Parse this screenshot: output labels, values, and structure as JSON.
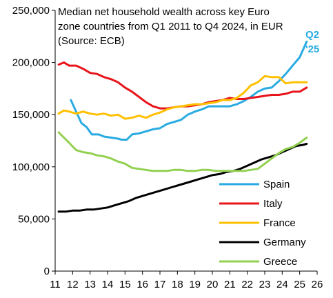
{
  "chart_data": {
    "type": "line",
    "title_lines": [
      "Median net household wealth across key Euro",
      "zone countries from Q1 2011 to Q4 2024, in EUR",
      "(Source: ECB)"
    ],
    "annotation": {
      "lines": [
        "Q2",
        "'25"
      ],
      "color": "#29abe2"
    },
    "xlim": [
      11,
      26
    ],
    "ylim": [
      0,
      250000
    ],
    "x_ticks": [
      "11",
      "12",
      "13",
      "14",
      "15",
      "16",
      "17",
      "18",
      "19",
      "20",
      "21",
      "22",
      "23",
      "24",
      "25",
      "26"
    ],
    "y_ticks": [
      "0",
      "50,000",
      "100,000",
      "150,000",
      "200,000",
      "250,000"
    ],
    "grid": false,
    "legend_position": "lower-right",
    "series": [
      {
        "name": "Spain",
        "color": "#29abe2",
        "points": [
          [
            11.9,
            164000
          ],
          [
            12.2,
            153000
          ],
          [
            12.5,
            142000
          ],
          [
            12.8,
            138000
          ],
          [
            13.1,
            131000
          ],
          [
            13.5,
            131000
          ],
          [
            13.8,
            129000
          ],
          [
            14.2,
            128000
          ],
          [
            14.6,
            127000
          ],
          [
            14.8,
            126000
          ],
          [
            15.1,
            126000
          ],
          [
            15.4,
            131000
          ],
          [
            15.8,
            132000
          ],
          [
            16.2,
            134000
          ],
          [
            16.6,
            136000
          ],
          [
            17.0,
            137000
          ],
          [
            17.4,
            141000
          ],
          [
            17.8,
            143000
          ],
          [
            18.2,
            145000
          ],
          [
            18.6,
            150000
          ],
          [
            19.0,
            153000
          ],
          [
            19.4,
            155000
          ],
          [
            19.8,
            158000
          ],
          [
            20.2,
            158000
          ],
          [
            20.6,
            158000
          ],
          [
            21.0,
            158000
          ],
          [
            21.4,
            160000
          ],
          [
            21.8,
            163000
          ],
          [
            22.2,
            167000
          ],
          [
            22.6,
            172000
          ],
          [
            23.0,
            175000
          ],
          [
            23.4,
            176000
          ],
          [
            23.8,
            182000
          ],
          [
            24.2,
            189000
          ],
          [
            24.6,
            197000
          ],
          [
            25.0,
            205000
          ],
          [
            25.4,
            220000
          ]
        ]
      },
      {
        "name": "Italy",
        "color": "#e8141b",
        "points": [
          [
            11.2,
            198000
          ],
          [
            11.5,
            200000
          ],
          [
            11.8,
            197000
          ],
          [
            12.2,
            197000
          ],
          [
            12.6,
            194000
          ],
          [
            13.0,
            190000
          ],
          [
            13.4,
            189000
          ],
          [
            13.8,
            186000
          ],
          [
            14.2,
            184000
          ],
          [
            14.6,
            181000
          ],
          [
            15.0,
            176000
          ],
          [
            15.4,
            172000
          ],
          [
            15.8,
            167000
          ],
          [
            16.2,
            162000
          ],
          [
            16.6,
            158000
          ],
          [
            17.0,
            156000
          ],
          [
            17.4,
            156000
          ],
          [
            17.8,
            157000
          ],
          [
            18.2,
            158000
          ],
          [
            18.6,
            158000
          ],
          [
            19.0,
            159000
          ],
          [
            19.4,
            160000
          ],
          [
            19.8,
            162000
          ],
          [
            20.2,
            163000
          ],
          [
            20.6,
            164000
          ],
          [
            21.0,
            166000
          ],
          [
            21.4,
            165000
          ],
          [
            21.8,
            165000
          ],
          [
            22.2,
            166000
          ],
          [
            22.6,
            167000
          ],
          [
            23.0,
            168000
          ],
          [
            23.4,
            169000
          ],
          [
            23.8,
            169000
          ],
          [
            24.2,
            170000
          ],
          [
            24.6,
            172000
          ],
          [
            25.0,
            172000
          ],
          [
            25.4,
            176000
          ]
        ]
      },
      {
        "name": "France",
        "color": "#ffc000",
        "points": [
          [
            11.2,
            151000
          ],
          [
            11.5,
            154000
          ],
          [
            11.8,
            153000
          ],
          [
            12.2,
            151000
          ],
          [
            12.6,
            153000
          ],
          [
            13.0,
            151000
          ],
          [
            13.4,
            150000
          ],
          [
            13.8,
            151000
          ],
          [
            14.2,
            149000
          ],
          [
            14.6,
            150000
          ],
          [
            15.0,
            146000
          ],
          [
            15.4,
            147000
          ],
          [
            15.8,
            149000
          ],
          [
            16.2,
            147000
          ],
          [
            16.6,
            150000
          ],
          [
            17.0,
            152000
          ],
          [
            17.4,
            155000
          ],
          [
            17.8,
            157000
          ],
          [
            18.2,
            158000
          ],
          [
            18.6,
            159000
          ],
          [
            19.0,
            160000
          ],
          [
            19.4,
            160000
          ],
          [
            19.8,
            161000
          ],
          [
            20.2,
            162000
          ],
          [
            20.6,
            164000
          ],
          [
            21.0,
            164000
          ],
          [
            21.4,
            166000
          ],
          [
            21.8,
            171000
          ],
          [
            22.2,
            178000
          ],
          [
            22.6,
            181000
          ],
          [
            23.0,
            187000
          ],
          [
            23.4,
            186000
          ],
          [
            23.8,
            186000
          ],
          [
            24.2,
            180000
          ],
          [
            24.6,
            181000
          ],
          [
            25.0,
            181000
          ],
          [
            25.4,
            181000
          ]
        ]
      },
      {
        "name": "Germany",
        "color": "#000000",
        "points": [
          [
            11.2,
            57000
          ],
          [
            11.6,
            57000
          ],
          [
            12.0,
            58000
          ],
          [
            12.4,
            58000
          ],
          [
            12.8,
            59000
          ],
          [
            13.2,
            59000
          ],
          [
            13.6,
            60000
          ],
          [
            14.0,
            61000
          ],
          [
            14.4,
            63000
          ],
          [
            14.8,
            65000
          ],
          [
            15.2,
            67000
          ],
          [
            15.6,
            70000
          ],
          [
            16.0,
            72000
          ],
          [
            16.4,
            74000
          ],
          [
            16.8,
            76000
          ],
          [
            17.2,
            78000
          ],
          [
            17.6,
            80000
          ],
          [
            18.0,
            82000
          ],
          [
            18.4,
            84000
          ],
          [
            18.8,
            86000
          ],
          [
            19.2,
            88000
          ],
          [
            19.6,
            90000
          ],
          [
            20.0,
            92000
          ],
          [
            20.4,
            93000
          ],
          [
            20.8,
            95000
          ],
          [
            21.2,
            96000
          ],
          [
            21.6,
            98000
          ],
          [
            22.0,
            101000
          ],
          [
            22.4,
            104000
          ],
          [
            22.8,
            107000
          ],
          [
            23.2,
            109000
          ],
          [
            23.6,
            111000
          ],
          [
            24.0,
            114000
          ],
          [
            24.4,
            117000
          ],
          [
            24.8,
            120000
          ],
          [
            25.2,
            121000
          ],
          [
            25.4,
            122000
          ]
        ]
      },
      {
        "name": "Greece",
        "color": "#92d050",
        "points": [
          [
            11.2,
            133000
          ],
          [
            11.5,
            128000
          ],
          [
            11.8,
            123000
          ],
          [
            12.2,
            116000
          ],
          [
            12.6,
            114000
          ],
          [
            13.0,
            113000
          ],
          [
            13.4,
            111000
          ],
          [
            13.8,
            110000
          ],
          [
            14.2,
            108000
          ],
          [
            14.6,
            105000
          ],
          [
            15.0,
            103000
          ],
          [
            15.4,
            99000
          ],
          [
            15.8,
            98000
          ],
          [
            16.2,
            97000
          ],
          [
            16.6,
            96000
          ],
          [
            17.0,
            96000
          ],
          [
            17.4,
            96000
          ],
          [
            17.8,
            97000
          ],
          [
            18.2,
            97000
          ],
          [
            18.6,
            96000
          ],
          [
            19.0,
            96000
          ],
          [
            19.4,
            97000
          ],
          [
            19.8,
            97000
          ],
          [
            20.2,
            96000
          ],
          [
            20.6,
            96000
          ],
          [
            21.0,
            96000
          ],
          [
            21.4,
            96000
          ],
          [
            21.8,
            96000
          ],
          [
            22.2,
            97000
          ],
          [
            22.6,
            98000
          ],
          [
            23.0,
            103000
          ],
          [
            23.4,
            108000
          ],
          [
            23.8,
            113000
          ],
          [
            24.2,
            117000
          ],
          [
            24.6,
            119000
          ],
          [
            25.0,
            123000
          ],
          [
            25.4,
            128000
          ]
        ]
      }
    ]
  }
}
